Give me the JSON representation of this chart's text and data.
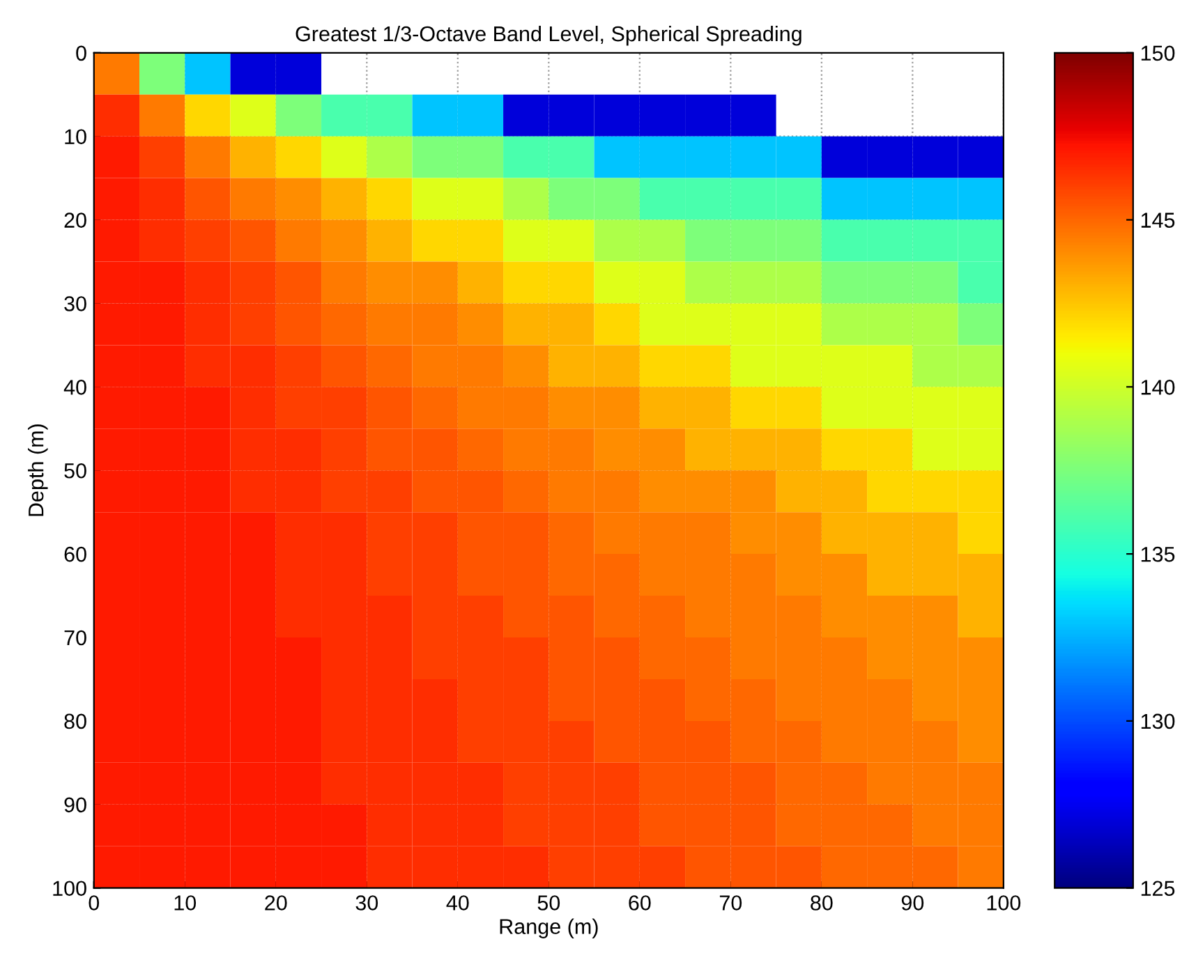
{
  "chart_data": {
    "type": "heatmap",
    "title": "Greatest 1/3-Octave Band Level, Spherical Spreading",
    "xlabel": "Range (m)",
    "ylabel": "Depth (m)",
    "x": [
      2.5,
      7.5,
      12.5,
      17.5,
      22.5,
      27.5,
      32.5,
      37.5,
      42.5,
      47.5,
      52.5,
      57.5,
      62.5,
      67.5,
      72.5,
      77.5,
      82.5,
      87.5,
      92.5,
      97.5
    ],
    "y": [
      2.5,
      7.5,
      12.5,
      17.5,
      22.5,
      27.5,
      32.5,
      37.5,
      42.5,
      47.5,
      52.5,
      57.5,
      62.5,
      67.5,
      72.5,
      77.5,
      82.5,
      87.5,
      92.5,
      97.5
    ],
    "xlim": [
      0,
      100
    ],
    "xticks": [
      0,
      10,
      20,
      30,
      40,
      50,
      60,
      70,
      80,
      90,
      100
    ],
    "ylim": [
      100,
      0
    ],
    "yticks": [
      0,
      10,
      20,
      30,
      40,
      50,
      60,
      70,
      80,
      90,
      100
    ],
    "clim": [
      125,
      150
    ],
    "cticks": [
      125,
      130,
      135,
      140,
      145,
      150
    ],
    "grid": true,
    "cells": [
      [
        144.5,
        137.5,
        133,
        127,
        127,
        null,
        null,
        null,
        null,
        null,
        null,
        null,
        null,
        null,
        null,
        null,
        null,
        null,
        null,
        null
      ],
      [
        146.5,
        144.5,
        142,
        140.5,
        137.5,
        136,
        136,
        133,
        133,
        127,
        127,
        127,
        127,
        127,
        127,
        null,
        null,
        null,
        null,
        null
      ],
      [
        147,
        146,
        144.5,
        143,
        142,
        140.5,
        139,
        137.5,
        137.5,
        136,
        136,
        133,
        133,
        133,
        133,
        133,
        127,
        127,
        127,
        127
      ],
      [
        147,
        146.5,
        145.5,
        144.5,
        144,
        143,
        142,
        140.5,
        140.5,
        139,
        137.5,
        137.5,
        136,
        136,
        136,
        136,
        133,
        133,
        133,
        133
      ],
      [
        147,
        146.5,
        146,
        145.5,
        144.5,
        144,
        143,
        142,
        142,
        140.5,
        140.5,
        139,
        139,
        137.5,
        137.5,
        137.5,
        136,
        136,
        136,
        136
      ],
      [
        147,
        147,
        146.5,
        146,
        145.5,
        144.5,
        144,
        144,
        143,
        142,
        142,
        140.5,
        140.5,
        139,
        139,
        139,
        137.5,
        137.5,
        137.5,
        136
      ],
      [
        147,
        147,
        146.5,
        146,
        145.5,
        145,
        144.5,
        144.5,
        144,
        143,
        143,
        142,
        140.5,
        140.5,
        140.5,
        140.5,
        139,
        139,
        139,
        137.5
      ],
      [
        147,
        147,
        146.5,
        146.5,
        146,
        145.5,
        145,
        144.5,
        144.5,
        144,
        143,
        143,
        142,
        142,
        140.5,
        140.5,
        140.5,
        140.5,
        139,
        139
      ],
      [
        147,
        147,
        147,
        146.5,
        146,
        146,
        145.5,
        145,
        144.5,
        144.5,
        144,
        144,
        143,
        143,
        142,
        142,
        140.5,
        140.5,
        140.5,
        140.5
      ],
      [
        147,
        147,
        147,
        146.5,
        146.5,
        146,
        145.5,
        145.5,
        145,
        144.5,
        144.5,
        144,
        144,
        143,
        143,
        143,
        142,
        142,
        140.5,
        140.5
      ],
      [
        147,
        147,
        147,
        146.5,
        146.5,
        146,
        146,
        145.5,
        145.5,
        145,
        144.5,
        144.5,
        144,
        144,
        144,
        143,
        143,
        142,
        142,
        142
      ],
      [
        147,
        147,
        147,
        147,
        146.5,
        146.5,
        146,
        146,
        145.5,
        145.5,
        145,
        144.5,
        144.5,
        144.5,
        144,
        144,
        143,
        143,
        143,
        142
      ],
      [
        147,
        147,
        147,
        147,
        146.5,
        146.5,
        146,
        146,
        145.5,
        145.5,
        145,
        145,
        144.5,
        144.5,
        144.5,
        144,
        144,
        143,
        143,
        143
      ],
      [
        147,
        147,
        147,
        147,
        146.5,
        146.5,
        146.5,
        146,
        146,
        145.5,
        145.5,
        145,
        145,
        144.5,
        144.5,
        144.5,
        144,
        144,
        144,
        143
      ],
      [
        147,
        147,
        147,
        147,
        147,
        146.5,
        146.5,
        146,
        146,
        146,
        145.5,
        145.5,
        145,
        145,
        144.5,
        144.5,
        144.5,
        144,
        144,
        144
      ],
      [
        147,
        147,
        147,
        147,
        147,
        146.5,
        146.5,
        146.5,
        146,
        146,
        145.5,
        145.5,
        145.5,
        145,
        145,
        144.5,
        144.5,
        144.5,
        144,
        144
      ],
      [
        147,
        147,
        147,
        147,
        147,
        146.5,
        146.5,
        146.5,
        146,
        146,
        146,
        145.5,
        145.5,
        145.5,
        145,
        145,
        144.5,
        144.5,
        144.5,
        144
      ],
      [
        147,
        147,
        147,
        147,
        147,
        146.5,
        146.5,
        146.5,
        146.5,
        146,
        146,
        146,
        145.5,
        145.5,
        145.5,
        145,
        145,
        144.5,
        144.5,
        144.5
      ],
      [
        147,
        147,
        147,
        147,
        147,
        147,
        146.5,
        146.5,
        146.5,
        146,
        146,
        146,
        145.5,
        145.5,
        145.5,
        145,
        145,
        145,
        144.5,
        144.5
      ],
      [
        147,
        147,
        147,
        147,
        147,
        147,
        146.5,
        146.5,
        146.5,
        146.5,
        146,
        146,
        146,
        145.5,
        145.5,
        145.5,
        145,
        145,
        145,
        144.5
      ]
    ]
  }
}
